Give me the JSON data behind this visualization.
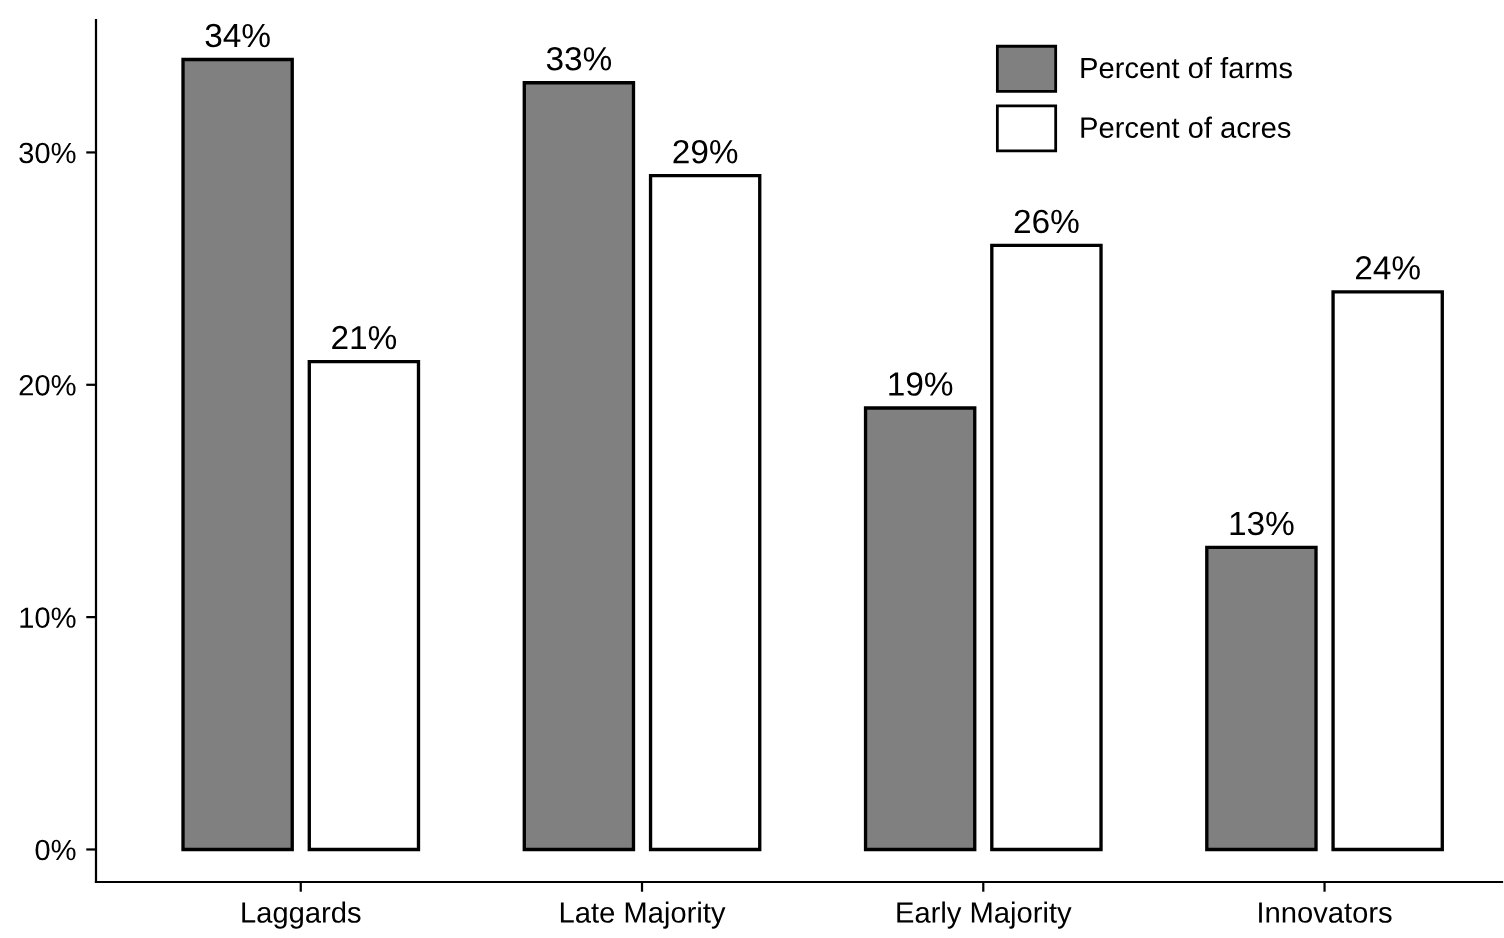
{
  "chart_data": {
    "type": "bar",
    "categories": [
      "Laggards",
      "Late Majority",
      "Early Majority",
      "Innovators"
    ],
    "series": [
      {
        "name": "Percent of farms",
        "color": "#808080",
        "values": [
          34,
          33,
          19,
          13
        ],
        "value_labels": [
          "34%",
          "33%",
          "19%",
          "13%"
        ]
      },
      {
        "name": "Percent of acres",
        "color": "#ffffff",
        "values": [
          21,
          29,
          26,
          24
        ],
        "value_labels": [
          "21%",
          "29%",
          "26%",
          "24%"
        ]
      }
    ],
    "ylim": [
      -1.4,
      35.7
    ],
    "yticks": [
      {
        "value": 0,
        "label": "0%"
      },
      {
        "value": 10,
        "label": "10%"
      },
      {
        "value": 20,
        "label": "20%"
      },
      {
        "value": 30,
        "label": "30%"
      }
    ],
    "legend": "top right",
    "grid": false
  }
}
